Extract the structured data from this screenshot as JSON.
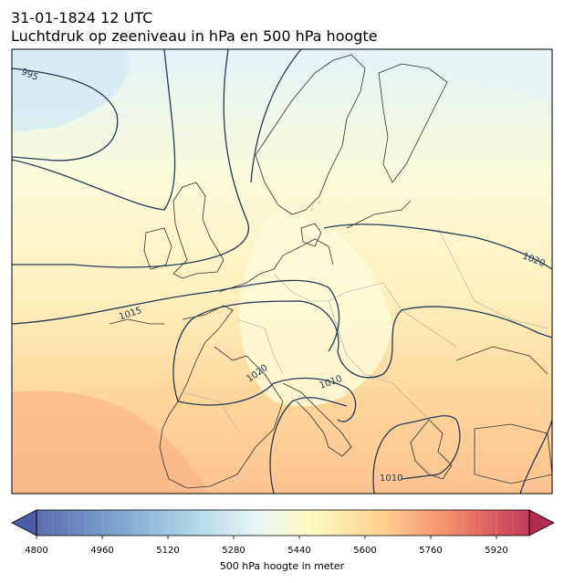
{
  "title": {
    "line1": "31-01-1824 12 UTC",
    "line2": "Luchtdruk op zeeniveau in hPa en 500 hPa hoogte"
  },
  "isobar_labels": [
    "995",
    "1015",
    "1020",
    "1020",
    "1010",
    "1010"
  ],
  "colorbar": {
    "label": "500 hPa hoogte in meter",
    "range": [
      4800,
      6000
    ],
    "ticks": [
      "4800",
      "4960",
      "5120",
      "5280",
      "5440",
      "5600",
      "5760",
      "5920"
    ],
    "colormap": "RdYlBu_r",
    "extend": "both"
  },
  "colors": {
    "isobar": "#243a56",
    "coastline": "#333333",
    "border": "#a8a8a8"
  }
}
